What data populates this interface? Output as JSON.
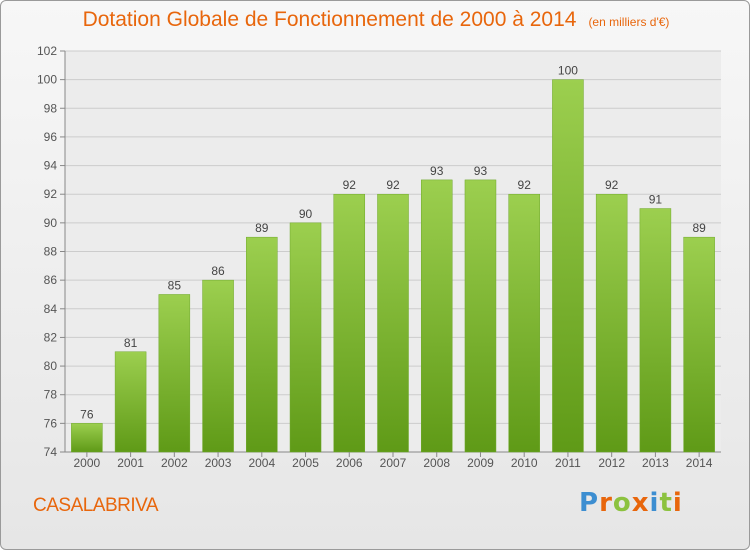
{
  "header": {
    "title": "Dotation Globale de Fonctionnement de 2000 à 2014",
    "subtitle": "(en milliers d'€)"
  },
  "footer": {
    "commune": "CASALABRIVA",
    "logo_text": "Proxiti",
    "logo_colors": [
      "#3c8ed1",
      "#e8660c",
      "#8cc23f",
      "#e8660c",
      "#3c8ed1",
      "#8cc23f",
      "#e8660c"
    ]
  },
  "chart_data": {
    "type": "bar",
    "categories": [
      "2000",
      "2001",
      "2002",
      "2003",
      "2004",
      "2005",
      "2006",
      "2007",
      "2008",
      "2009",
      "2010",
      "2011",
      "2012",
      "2013",
      "2014"
    ],
    "values": [
      76,
      81,
      85,
      86,
      89,
      90,
      92,
      92,
      93,
      93,
      92,
      100,
      92,
      91,
      89
    ],
    "ylim": [
      74,
      102
    ],
    "yticks": [
      74,
      76,
      78,
      80,
      82,
      84,
      86,
      88,
      90,
      92,
      94,
      96,
      98,
      100,
      102
    ],
    "grid": true,
    "bar_color": "#7fbe2d",
    "label_color": "#444444"
  }
}
